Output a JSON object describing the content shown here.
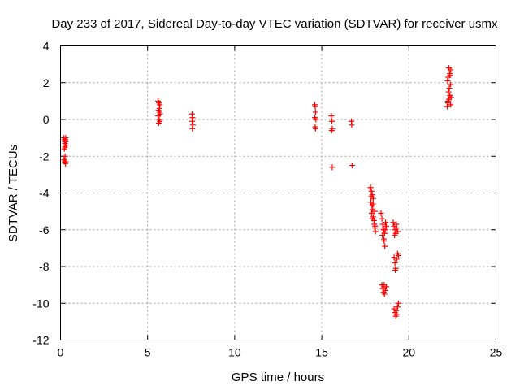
{
  "chart_data": {
    "type": "scatter",
    "title": "Day 233 of 2017, Sidereal Day-to-day VTEC variation (SDTVAR) for receiver usmx",
    "xlabel": "GPS time / hours",
    "ylabel": "SDTVAR / TECUs",
    "xlim": [
      0,
      25
    ],
    "ylim": [
      -12,
      4
    ],
    "x_ticks": [
      0,
      5,
      10,
      15,
      20,
      25
    ],
    "y_ticks": [
      4,
      2,
      0,
      -2,
      -4,
      -6,
      -8,
      -10,
      -12
    ],
    "grid": true,
    "marker": "plus",
    "color": "#ff0000",
    "series": [
      {
        "name": "SDTVAR",
        "points": [
          [
            0.2,
            -1.0
          ],
          [
            0.22,
            -1.1
          ],
          [
            0.24,
            -1.2
          ],
          [
            0.26,
            -1.3
          ],
          [
            0.28,
            -1.1
          ],
          [
            0.3,
            -1.0
          ],
          [
            0.32,
            -1.4
          ],
          [
            0.22,
            -1.6
          ],
          [
            0.25,
            -1.5
          ],
          [
            0.3,
            -1.2
          ],
          [
            0.2,
            -2.2
          ],
          [
            0.24,
            -2.3
          ],
          [
            0.28,
            -2.4
          ],
          [
            0.3,
            -2.3
          ],
          [
            0.26,
            -2.0
          ],
          [
            5.6,
            1.0
          ],
          [
            5.65,
            0.9
          ],
          [
            5.7,
            0.8
          ],
          [
            5.62,
            0.5
          ],
          [
            5.68,
            0.4
          ],
          [
            5.72,
            0.3
          ],
          [
            5.6,
            0.2
          ],
          [
            5.66,
            0.0
          ],
          [
            5.7,
            -0.1
          ],
          [
            5.64,
            -0.2
          ],
          [
            5.68,
            0.6
          ],
          [
            7.55,
            0.3
          ],
          [
            7.58,
            0.1
          ],
          [
            7.56,
            -0.1
          ],
          [
            7.6,
            -0.3
          ],
          [
            7.57,
            -0.5
          ],
          [
            14.6,
            0.8
          ],
          [
            14.62,
            0.7
          ],
          [
            14.64,
            0.4
          ],
          [
            14.6,
            0.1
          ],
          [
            14.66,
            0.0
          ],
          [
            14.62,
            -0.4
          ],
          [
            14.64,
            -0.5
          ],
          [
            15.55,
            0.2
          ],
          [
            15.58,
            -0.1
          ],
          [
            15.6,
            -0.5
          ],
          [
            15.57,
            -0.6
          ],
          [
            15.6,
            -2.6
          ],
          [
            16.7,
            -0.1
          ],
          [
            16.72,
            -0.3
          ],
          [
            16.74,
            -2.5
          ],
          [
            17.8,
            -3.7
          ],
          [
            17.85,
            -3.9
          ],
          [
            17.9,
            -4.1
          ],
          [
            17.95,
            -4.3
          ],
          [
            17.82,
            -4.5
          ],
          [
            17.88,
            -4.7
          ],
          [
            17.92,
            -4.9
          ],
          [
            17.86,
            -5.1
          ],
          [
            17.96,
            -5.3
          ],
          [
            18.0,
            -5.5
          ],
          [
            18.02,
            -5.7
          ],
          [
            18.05,
            -5.9
          ],
          [
            18.08,
            -6.1
          ],
          [
            17.84,
            -4.2
          ],
          [
            17.94,
            -4.6
          ],
          [
            18.04,
            -5.0
          ],
          [
            17.9,
            -5.4
          ],
          [
            18.06,
            -5.8
          ],
          [
            18.4,
            -5.1
          ],
          [
            18.45,
            -5.4
          ],
          [
            18.5,
            -5.7
          ],
          [
            18.55,
            -6.0
          ],
          [
            18.48,
            -6.3
          ],
          [
            18.58,
            -6.6
          ],
          [
            18.62,
            -6.9
          ],
          [
            18.52,
            -5.9
          ],
          [
            18.6,
            -6.2
          ],
          [
            18.66,
            -5.6
          ],
          [
            18.7,
            -5.8
          ],
          [
            18.56,
            -6.5
          ],
          [
            18.64,
            -6.0
          ],
          [
            18.45,
            -9.0
          ],
          [
            18.5,
            -9.2
          ],
          [
            18.55,
            -9.4
          ],
          [
            18.6,
            -9.5
          ],
          [
            18.65,
            -9.3
          ],
          [
            18.7,
            -9.1
          ],
          [
            18.58,
            -9.0
          ],
          [
            19.1,
            -5.6
          ],
          [
            19.15,
            -5.8
          ],
          [
            19.2,
            -6.0
          ],
          [
            19.25,
            -6.2
          ],
          [
            19.3,
            -5.9
          ],
          [
            19.35,
            -6.1
          ],
          [
            19.18,
            -6.3
          ],
          [
            19.28,
            -5.7
          ],
          [
            19.15,
            -7.5
          ],
          [
            19.2,
            -7.8
          ],
          [
            19.25,
            -8.1
          ],
          [
            19.3,
            -7.6
          ],
          [
            19.35,
            -7.3
          ],
          [
            19.4,
            -7.4
          ],
          [
            19.22,
            -8.2
          ],
          [
            19.15,
            -10.3
          ],
          [
            19.2,
            -10.5
          ],
          [
            19.25,
            -10.7
          ],
          [
            19.3,
            -10.6
          ],
          [
            19.35,
            -10.2
          ],
          [
            19.4,
            -10.0
          ],
          [
            19.28,
            -10.4
          ],
          [
            22.2,
            0.7
          ],
          [
            22.25,
            0.9
          ],
          [
            22.3,
            1.1
          ],
          [
            22.35,
            1.3
          ],
          [
            22.28,
            1.5
          ],
          [
            22.32,
            1.7
          ],
          [
            22.38,
            1.9
          ],
          [
            22.22,
            2.1
          ],
          [
            22.26,
            2.3
          ],
          [
            22.34,
            2.5
          ],
          [
            22.4,
            2.7
          ],
          [
            22.3,
            2.8
          ],
          [
            22.36,
            2.4
          ],
          [
            22.24,
            1.0
          ],
          [
            22.42,
            1.2
          ],
          [
            22.4,
            0.8
          ]
        ]
      }
    ]
  }
}
